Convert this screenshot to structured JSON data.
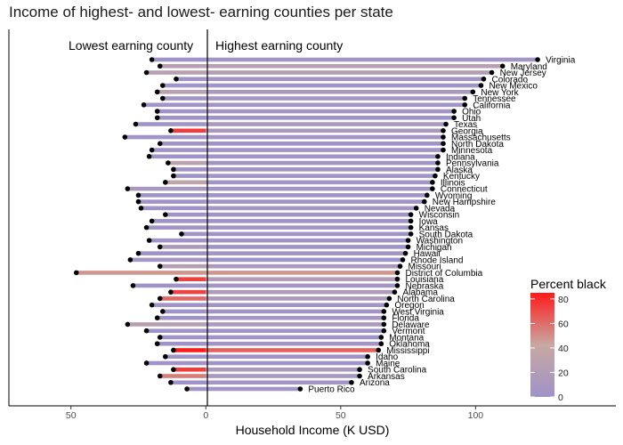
{
  "chart_data": {
    "type": "bar",
    "title": "Income of highest- and lowest- earning counties per state",
    "xlabel": "Household Income (K USD)",
    "ylabel": "",
    "xlim": [
      -73,
      152
    ],
    "xticks": [
      -50,
      0,
      50,
      100
    ],
    "xtick_labels": [
      "50",
      "0",
      "50",
      "100"
    ],
    "grid": false,
    "legend_position": "right",
    "annotations": {
      "left": "Lowest earning county",
      "right": "Highest earning county"
    },
    "legend": {
      "title": "Percent black",
      "ticks": [
        0,
        20,
        40,
        60,
        80
      ],
      "range": [
        0,
        85
      ],
      "low_color": "#9f93c8",
      "mid_color": "#c8a8a2",
      "high_color": "#ff1a1a"
    },
    "rows": [
      {
        "state": "Virginia",
        "high": 123,
        "low": 20,
        "high_black": 4,
        "low_black": 1
      },
      {
        "state": "Maryland",
        "high": 110,
        "low": 17,
        "high_black": 27,
        "low_black": 26
      },
      {
        "state": "New Jersey",
        "high": 106,
        "low": 22,
        "high_black": 22,
        "low_black": 26
      },
      {
        "state": "Colorado",
        "high": 103,
        "low": 11,
        "high_black": 3,
        "low_black": 1
      },
      {
        "state": "New Mexico",
        "high": 102,
        "low": 16,
        "high_black": 2,
        "low_black": 2
      },
      {
        "state": "New York",
        "high": 99,
        "low": 18,
        "high_black": 12,
        "low_black": 28
      },
      {
        "state": "Tennessee",
        "high": 96,
        "low": 16,
        "high_black": 6,
        "low_black": 1
      },
      {
        "state": "California",
        "high": 96,
        "low": 23,
        "high_black": 3,
        "low_black": 2
      },
      {
        "state": "Ohio",
        "high": 92,
        "low": 18,
        "high_black": 5,
        "low_black": 1
      },
      {
        "state": "Utah",
        "high": 92,
        "low": 18,
        "high_black": 1,
        "low_black": 1
      },
      {
        "state": "Texas",
        "high": 89,
        "low": 26,
        "high_black": 12,
        "low_black": 2
      },
      {
        "state": "Georgia",
        "high": 88,
        "low": 13,
        "high_black": 12,
        "low_black": 75
      },
      {
        "state": "Massachusetts",
        "high": 88,
        "low": 30,
        "high_black": 4,
        "low_black": 2
      },
      {
        "state": "North Dakota",
        "high": 88,
        "low": 17,
        "high_black": 1,
        "low_black": 1
      },
      {
        "state": "Minnesota",
        "high": 88,
        "low": 20,
        "high_black": 2,
        "low_black": 1
      },
      {
        "state": "Indiana",
        "high": 86,
        "low": 21,
        "high_black": 2,
        "low_black": 1
      },
      {
        "state": "Pennsylvania",
        "high": 86,
        "low": 14,
        "high_black": 3,
        "low_black": 30
      },
      {
        "state": "Alaska",
        "high": 86,
        "low": 12,
        "high_black": 3,
        "low_black": 1
      },
      {
        "state": "Kentucky",
        "high": 85,
        "low": 12,
        "high_black": 2,
        "low_black": 1
      },
      {
        "state": "Illinois",
        "high": 84,
        "low": 15,
        "high_black": 2,
        "low_black": 34
      },
      {
        "state": "Connecticut",
        "high": 84,
        "low": 29,
        "high_black": 4,
        "low_black": 12
      },
      {
        "state": "Wyoming",
        "high": 82,
        "low": 25,
        "high_black": 1,
        "low_black": 1
      },
      {
        "state": "New Hampshire",
        "high": 81,
        "low": 25,
        "high_black": 1,
        "low_black": 1
      },
      {
        "state": "Nevada",
        "high": 78,
        "low": 24,
        "high_black": 6,
        "low_black": 1
      },
      {
        "state": "Wisconsin",
        "high": 76,
        "low": 15,
        "high_black": 1,
        "low_black": 1
      },
      {
        "state": "Iowa",
        "high": 76,
        "low": 20,
        "high_black": 1,
        "low_black": 1
      },
      {
        "state": "Kansas",
        "high": 76,
        "low": 22,
        "high_black": 2,
        "low_black": 1
      },
      {
        "state": "South Dakota",
        "high": 76,
        "low": 9,
        "high_black": 1,
        "low_black": 1
      },
      {
        "state": "Washington",
        "high": 75,
        "low": 21,
        "high_black": 2,
        "low_black": 1
      },
      {
        "state": "Michigan",
        "high": 75,
        "low": 17,
        "high_black": 1,
        "low_black": 14
      },
      {
        "state": "Hawaii",
        "high": 74,
        "low": 25,
        "high_black": 3,
        "low_black": 1
      },
      {
        "state": "Rhode Island",
        "high": 73,
        "low": 28,
        "high_black": 1,
        "low_black": 6
      },
      {
        "state": "Missouri",
        "high": 72,
        "low": 17,
        "high_black": 12,
        "low_black": 25
      },
      {
        "state": "District of Columbia",
        "high": 71,
        "low": 48,
        "high_black": 48,
        "low_black": 48
      },
      {
        "state": "Louisiana",
        "high": 71,
        "low": 11,
        "high_black": 20,
        "low_black": 74
      },
      {
        "state": "Nebraska",
        "high": 71,
        "low": 27,
        "high_black": 4,
        "low_black": 1
      },
      {
        "state": "Alabama",
        "high": 70,
        "low": 13,
        "high_black": 16,
        "low_black": 72
      },
      {
        "state": "North Carolina",
        "high": 68,
        "low": 17,
        "high_black": 13,
        "low_black": 62
      },
      {
        "state": "Oregon",
        "high": 67,
        "low": 20,
        "high_black": 2,
        "low_black": 1
      },
      {
        "state": "West Virginia",
        "high": 66,
        "low": 16,
        "high_black": 3,
        "low_black": 1
      },
      {
        "state": "Florida",
        "high": 66,
        "low": 18,
        "high_black": 6,
        "low_black": 1
      },
      {
        "state": "Delaware",
        "high": 66,
        "low": 29,
        "high_black": 13,
        "low_black": 25
      },
      {
        "state": "Vermont",
        "high": 66,
        "low": 22,
        "high_black": 1,
        "low_black": 1
      },
      {
        "state": "Montana",
        "high": 65,
        "low": 17,
        "high_black": 1,
        "low_black": 1
      },
      {
        "state": "Oklahoma",
        "high": 65,
        "low": 18,
        "high_black": 3,
        "low_black": 1
      },
      {
        "state": "Mississippi",
        "high": 64,
        "low": 12,
        "high_black": 64,
        "low_black": 85
      },
      {
        "state": "Idaho",
        "high": 60,
        "low": 15,
        "high_black": 1,
        "low_black": 1
      },
      {
        "state": "Maine",
        "high": 60,
        "low": 22,
        "high_black": 1,
        "low_black": 1
      },
      {
        "state": "South Carolina",
        "high": 57,
        "low": 12,
        "high_black": 12,
        "low_black": 75
      },
      {
        "state": "Arkansas",
        "high": 57,
        "low": 17,
        "high_black": 8,
        "low_black": 55
      },
      {
        "state": "Arizona",
        "high": 54,
        "low": 13,
        "high_black": 4,
        "low_black": 1
      },
      {
        "state": "Puerto Rico",
        "high": 35,
        "low": 7,
        "high_black": 5,
        "low_black": 3
      }
    ]
  }
}
